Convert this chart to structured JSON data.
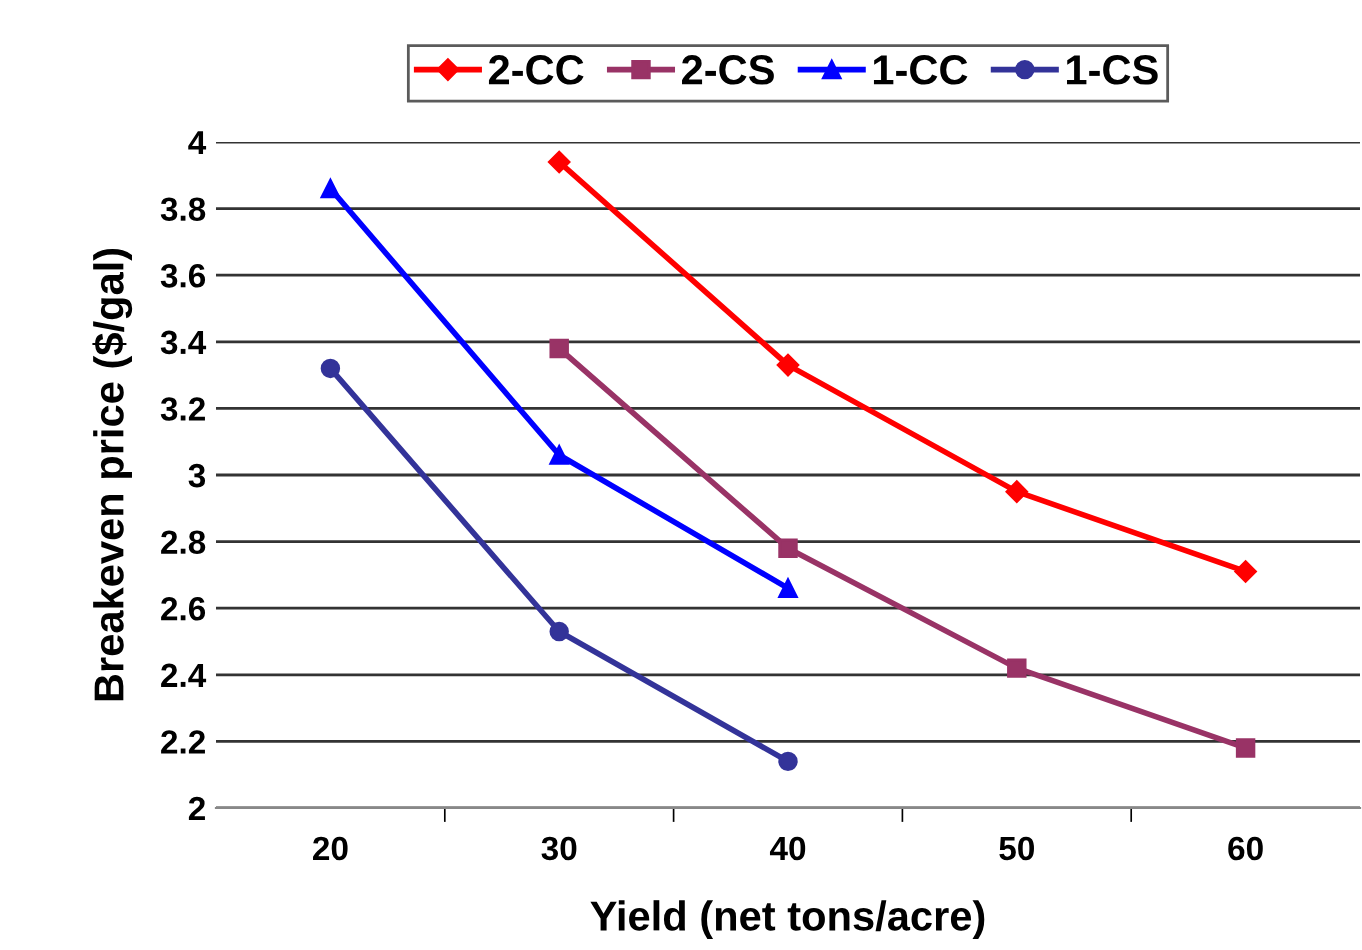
{
  "chart_data": {
    "type": "line",
    "xlabel": "Yield (net tons/acre)",
    "ylabel": "Breakeven price ($/gal)",
    "categories": [
      "20",
      "30",
      "40",
      "50",
      "60"
    ],
    "series": [
      {
        "name": "2-CC",
        "color": "#ff0000",
        "marker": "diamond",
        "values": [
          null,
          3.94,
          3.33,
          2.95,
          2.71
        ]
      },
      {
        "name": "2-CS",
        "color": "#993366",
        "marker": "square",
        "values": [
          null,
          3.38,
          2.78,
          2.42,
          2.18
        ]
      },
      {
        "name": "1-CC",
        "color": "#0000ff",
        "marker": "triangle",
        "values": [
          3.86,
          3.06,
          2.66,
          null,
          null
        ]
      },
      {
        "name": "1-CS",
        "color": "#333399",
        "marker": "circle",
        "values": [
          3.32,
          2.53,
          2.14,
          null,
          null
        ]
      }
    ],
    "ylim": [
      2,
      4
    ],
    "yticks": [
      2,
      2.2,
      2.4,
      2.6,
      2.8,
      3,
      3.2,
      3.4,
      3.6,
      3.8,
      4
    ],
    "grid": "y",
    "legend": "top"
  }
}
